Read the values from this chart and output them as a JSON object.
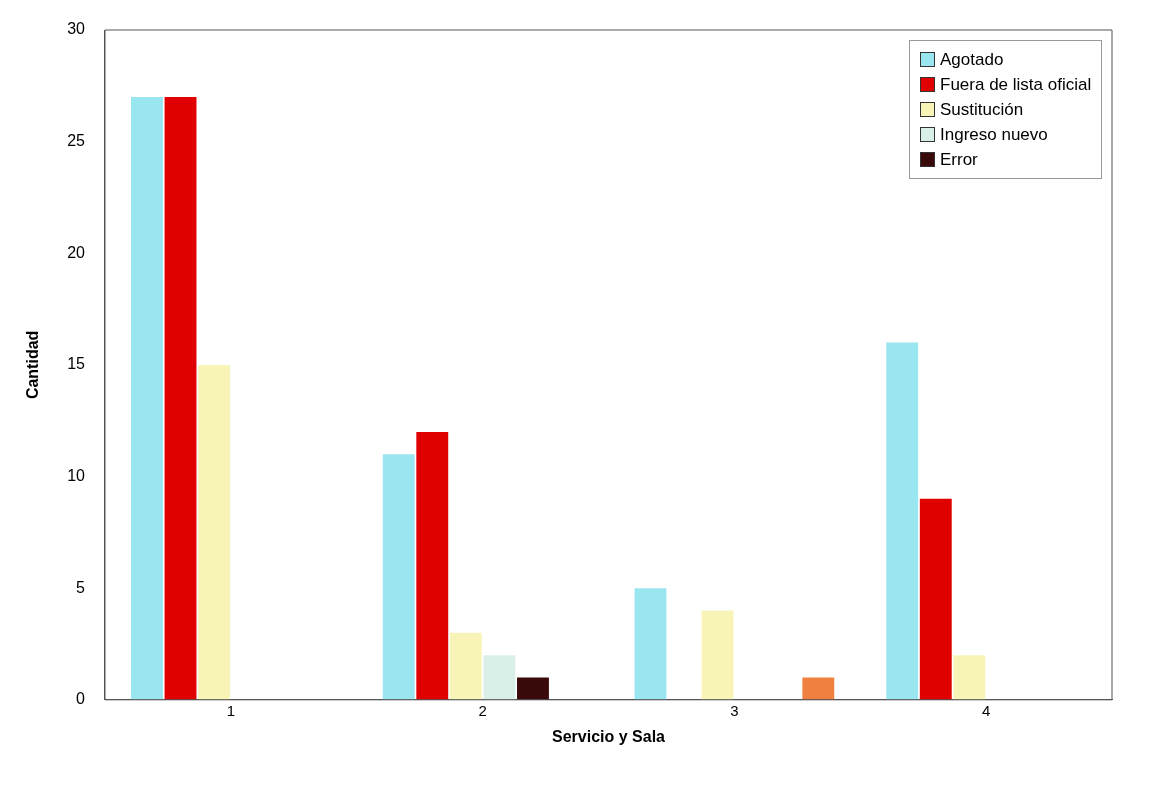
{
  "chart_data": {
    "type": "bar",
    "xlabel": "Servicio y Sala",
    "ylabel": "Cantidad",
    "categories": [
      "1",
      "2",
      "3",
      "4"
    ],
    "series": [
      {
        "name": "Agotado",
        "color": "#99e6f0",
        "values": [
          27,
          11,
          5,
          16
        ]
      },
      {
        "name": "Fuera de lista oficial",
        "color": "#e00000",
        "values": [
          27,
          12,
          0,
          9
        ]
      },
      {
        "name": "Sustitución",
        "color": "#f8f4b8",
        "values": [
          15,
          3,
          4,
          2
        ]
      },
      {
        "name": "Ingreso nuevo",
        "color": "#d8f0e8",
        "values": [
          0,
          2,
          0,
          0
        ]
      },
      {
        "name": "Error",
        "color": "#3a0a0a",
        "values": [
          0,
          1,
          0,
          0
        ]
      },
      {
        "color": "#f08040",
        "values": [
          0,
          0,
          1,
          0
        ]
      }
    ],
    "ylim": [
      0,
      30
    ],
    "yticks": [
      0,
      5,
      10,
      15,
      20,
      25,
      30
    ],
    "grid": false,
    "legend": "top right"
  }
}
